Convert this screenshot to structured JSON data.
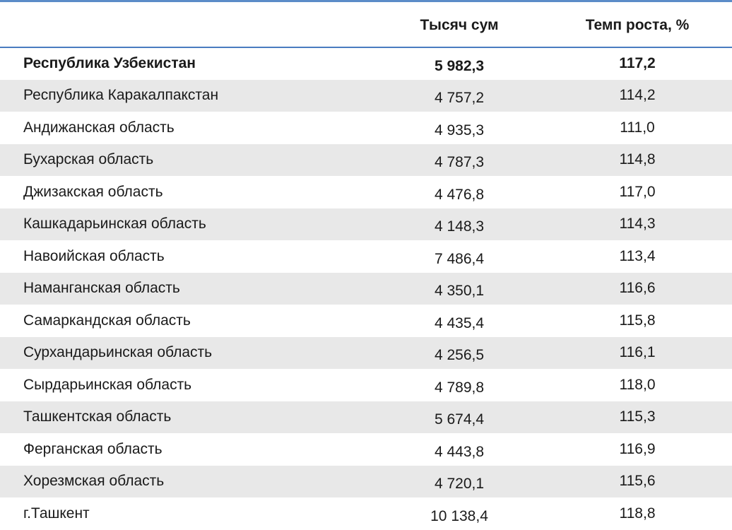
{
  "table": {
    "columns": {
      "region": "",
      "value": "Тысяч сум",
      "growth": "Темп роста, %"
    },
    "rows": [
      {
        "region": "Республика Узбекистан",
        "value": "5 982,3",
        "growth": "117,2"
      },
      {
        "region": "Республика Каракалпакстан",
        "value": "4 757,2",
        "growth": "114,2"
      },
      {
        "region": "Андижанская область",
        "value": "4 935,3",
        "growth": "111,0"
      },
      {
        "region": "Бухарская область",
        "value": "4 787,3",
        "growth": "114,8"
      },
      {
        "region": "Джизакская область",
        "value": "4 476,8",
        "growth": "117,0"
      },
      {
        "region": "Кашкадарьинская область",
        "value": "4 148,3",
        "growth": "114,3"
      },
      {
        "region": "Навоийская область",
        "value": "7 486,4",
        "growth": "113,4"
      },
      {
        "region": "Наманганская область",
        "value": "4 350,1",
        "growth": "116,6"
      },
      {
        "region": "Самаркандская область",
        "value": "4 435,4",
        "growth": "115,8"
      },
      {
        "region": "Сурхандарьинская область",
        "value": "4 256,5",
        "growth": "116,1"
      },
      {
        "region": "Сырдарьинская область",
        "value": "4 789,8",
        "growth": "118,0"
      },
      {
        "region": "Ташкентская область",
        "value": "5 674,4",
        "growth": "115,3"
      },
      {
        "region": "Ферганская область",
        "value": "4 443,8",
        "growth": "116,9"
      },
      {
        "region": "Хорезмская область",
        "value": "4 720,1",
        "growth": "115,6"
      },
      {
        "region": "г.Ташкент",
        "value": "10 138,4",
        "growth": "118,8"
      }
    ]
  },
  "colors": {
    "rule": "#5b8cc8",
    "header_rule": "#4a7cc0",
    "stripe": "#e8e8e8"
  }
}
